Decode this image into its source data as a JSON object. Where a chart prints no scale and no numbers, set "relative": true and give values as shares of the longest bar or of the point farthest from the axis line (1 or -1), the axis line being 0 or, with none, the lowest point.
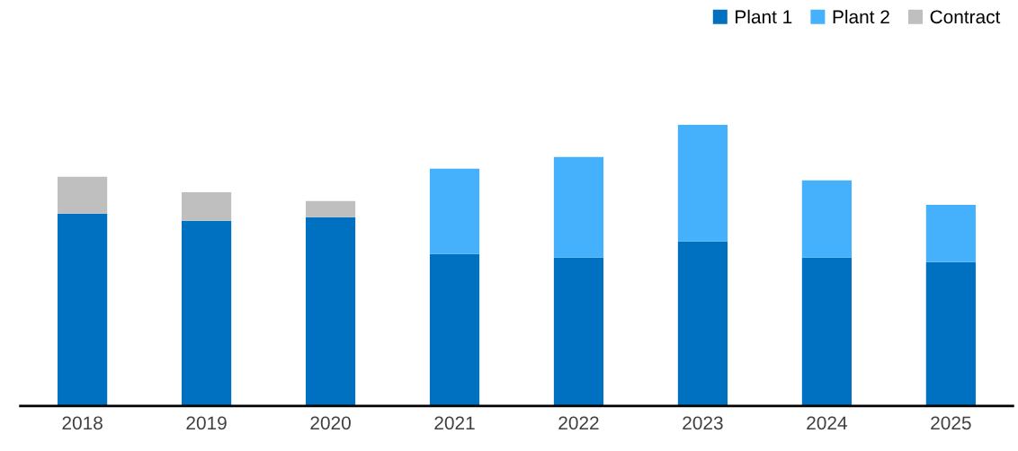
{
  "chart_data": {
    "type": "bar",
    "stacked": true,
    "relative": true,
    "legend": "top right",
    "grid": false,
    "categories": [
      "2018",
      "2019",
      "2020",
      "2021",
      "2022",
      "2023",
      "2024",
      "2025"
    ],
    "series": [
      {
        "name": "Plant 1",
        "color": "#0070c0",
        "values": [
          0.684,
          0.658,
          0.671,
          0.54,
          0.527,
          0.585,
          0.527,
          0.511
        ]
      },
      {
        "name": "Plant 2",
        "color": "#45b0fb",
        "values": [
          null,
          null,
          null,
          0.304,
          0.358,
          0.415,
          0.275,
          0.204
        ]
      },
      {
        "name": "Contract",
        "color": "#bfbfbf",
        "values": [
          0.131,
          0.102,
          0.058,
          null,
          null,
          null,
          null,
          null
        ]
      }
    ]
  }
}
